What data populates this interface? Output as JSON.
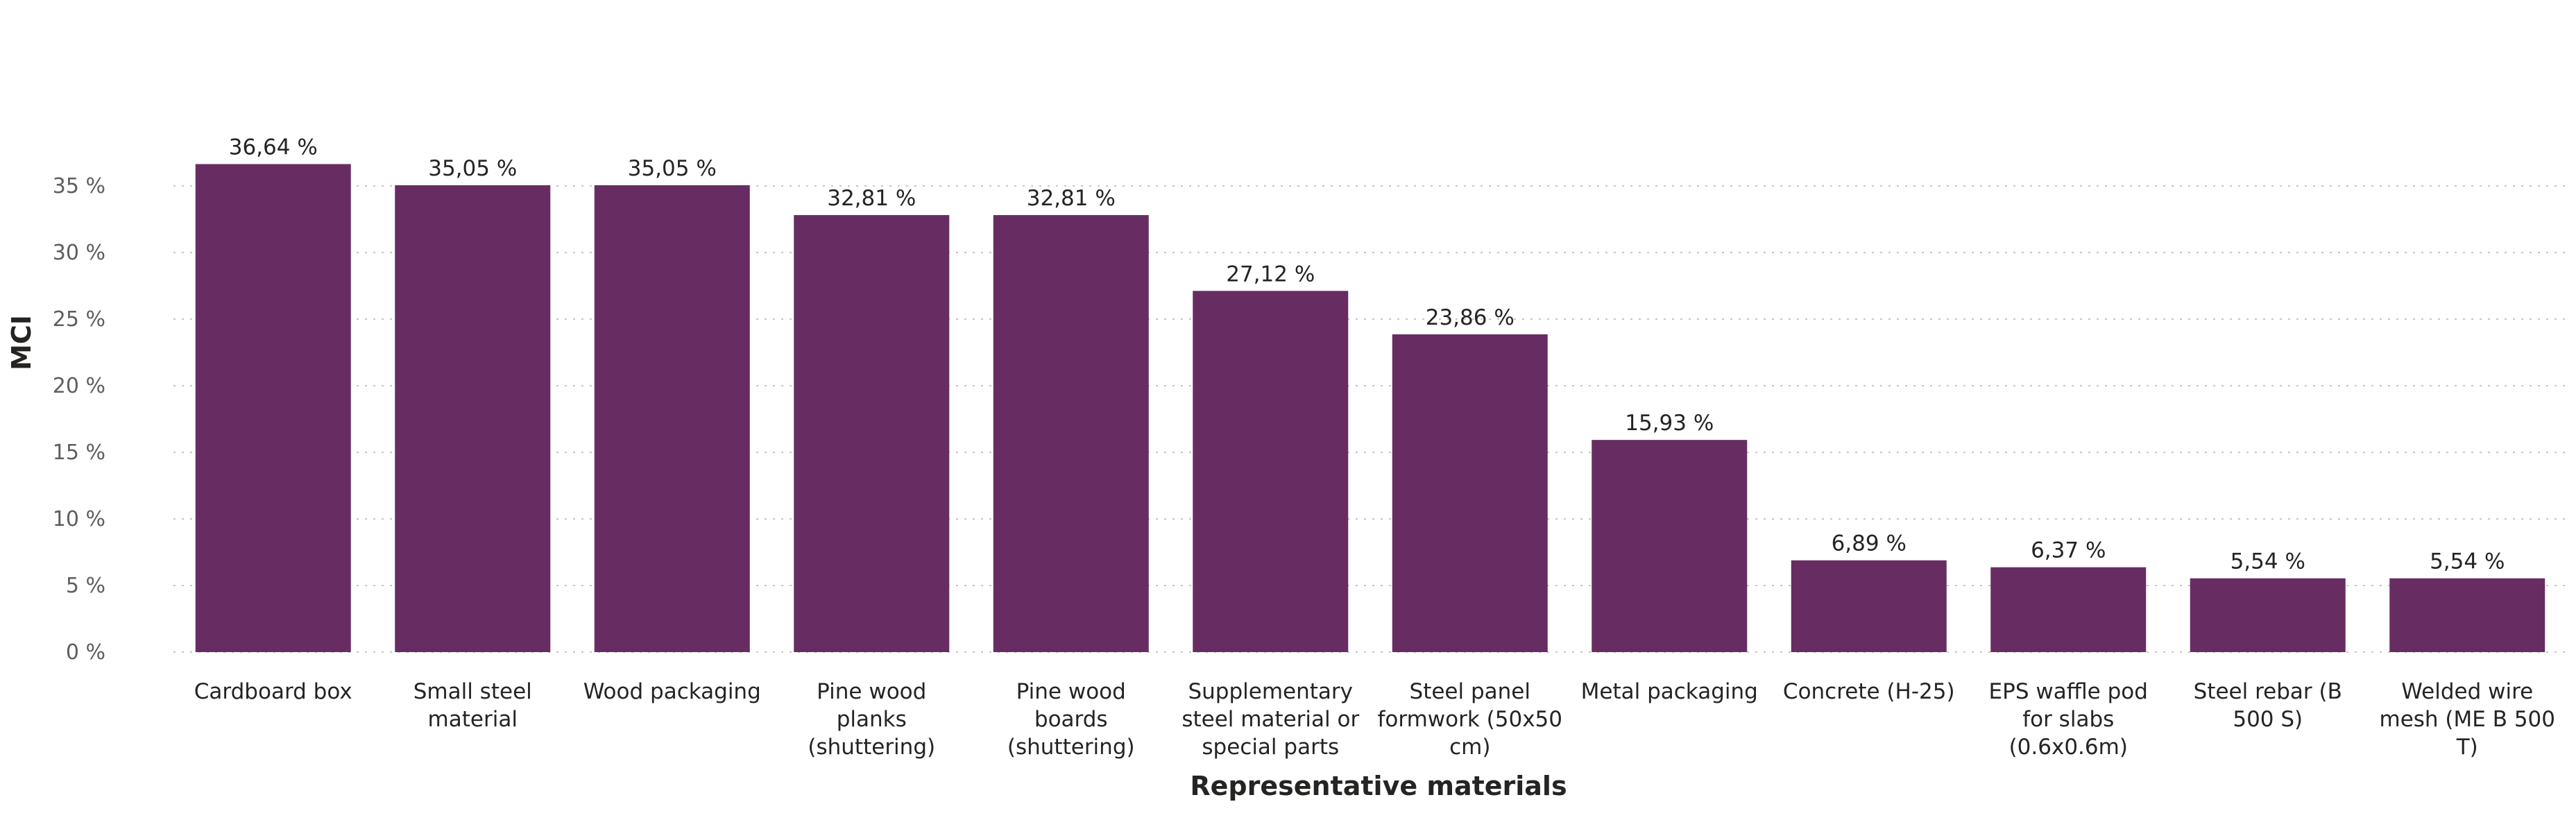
{
  "chart_data": {
    "type": "bar",
    "categories": [
      [
        "Cardboard box"
      ],
      [
        "Small steel",
        "material"
      ],
      [
        "Wood packaging"
      ],
      [
        "Pine wood",
        "planks",
        "(shuttering)"
      ],
      [
        "Pine wood",
        "boards",
        "(shuttering)"
      ],
      [
        "Supplementary",
        "steel material or",
        "special parts"
      ],
      [
        "Steel panel",
        "formwork (50x50",
        "cm)"
      ],
      [
        "Metal packaging"
      ],
      [
        "Concrete (H-25)"
      ],
      [
        "EPS waffle pod",
        "for slabs",
        "(0.6x0.6m)"
      ],
      [
        "Steel rebar (B",
        "500 S)"
      ],
      [
        "Welded wire",
        "mesh (ME B 500",
        "T)"
      ]
    ],
    "values": [
      36.64,
      35.05,
      35.05,
      32.81,
      32.81,
      27.12,
      23.86,
      15.93,
      6.89,
      6.37,
      5.54,
      5.54
    ],
    "value_labels": [
      "36,64 %",
      "35,05 %",
      "35,05 %",
      "32,81 %",
      "32,81 %",
      "27,12 %",
      "23,86 %",
      "15,93 %",
      "6,89 %",
      "6,37 %",
      "5,54 %",
      "5,54 %"
    ],
    "yticks": [
      0,
      5,
      10,
      15,
      20,
      25,
      30,
      35
    ],
    "ytick_labels": [
      "0 %",
      "5 %",
      "10 %",
      "15 %",
      "20 %",
      "25 %",
      "30 %",
      "35 %"
    ],
    "ylim": [
      0,
      37.5
    ],
    "xlabel": "Representative materials",
    "ylabel": "MCI",
    "grid": true,
    "bar_color": "#672d62"
  }
}
